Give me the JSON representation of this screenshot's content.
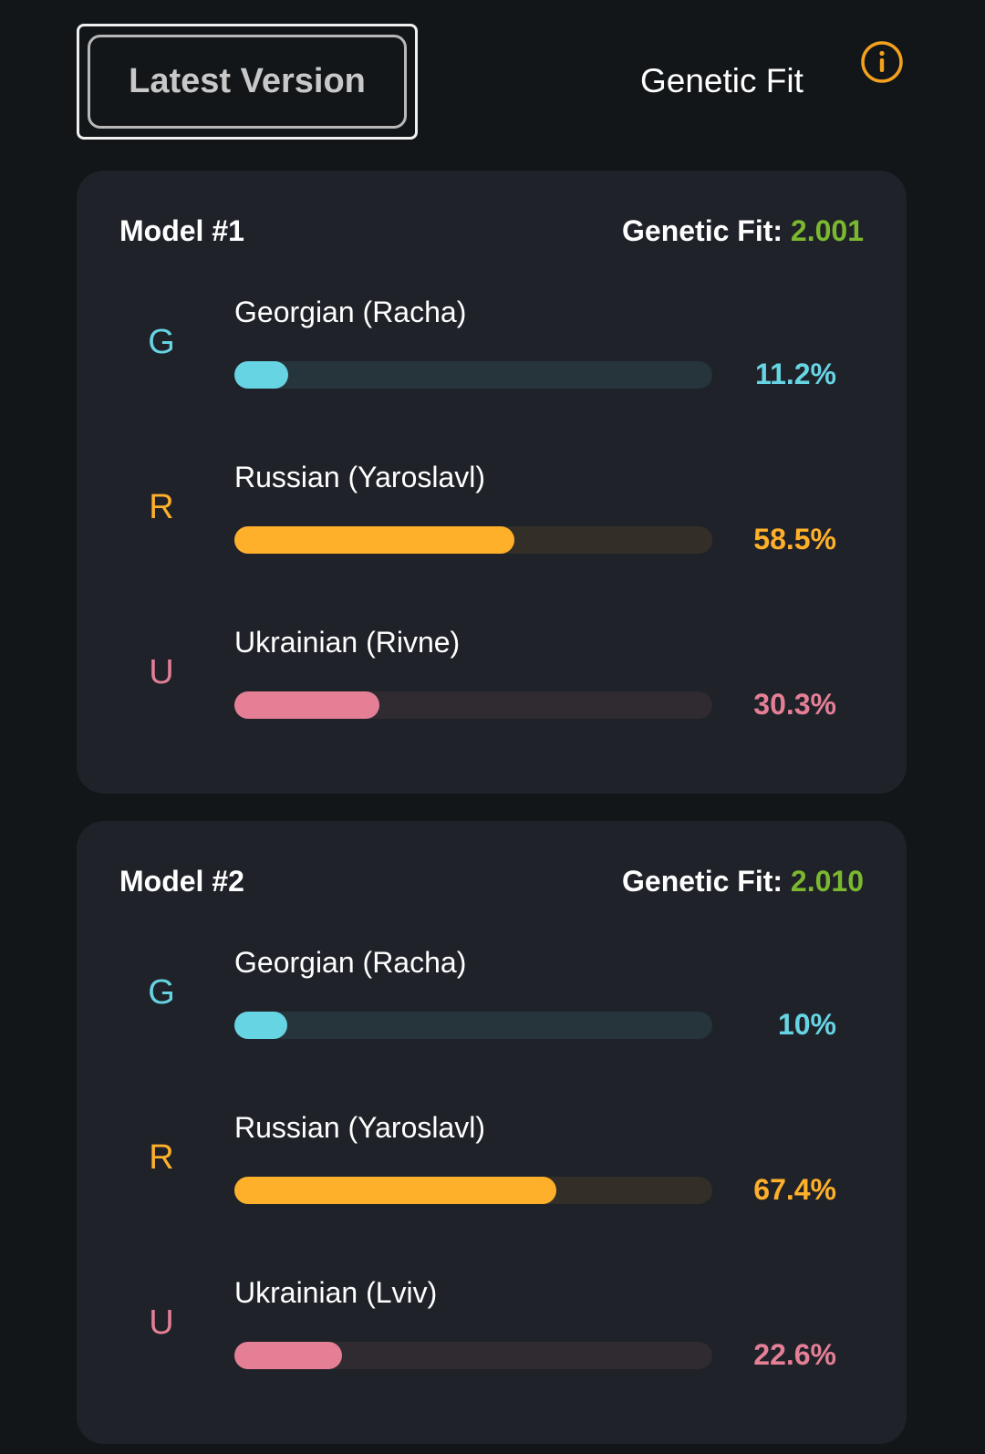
{
  "header": {
    "button_label": "Latest Version",
    "title": "Genetic Fit",
    "info_icon": "info-circle-icon",
    "info_color": "#f4a11e"
  },
  "colors": {
    "fit_value": "#7cb82f"
  },
  "models": [
    {
      "title": "Model #1",
      "fit_label": "Genetic Fit:",
      "fit_value": "2.001",
      "rows": [
        {
          "letter": "G",
          "label": "Georgian (Racha)",
          "percent_text": "11.2%",
          "percent": 11.2,
          "color": "#67d4e4",
          "track": "#26343b"
        },
        {
          "letter": "R",
          "label": "Russian (Yaroslavl)",
          "percent_text": "58.5%",
          "percent": 58.5,
          "color": "#ffb02a",
          "track": "#332f28"
        },
        {
          "letter": "U",
          "label": "Ukrainian (Rivne)",
          "percent_text": "30.3%",
          "percent": 30.3,
          "color": "#e47f96",
          "track": "#302a31"
        }
      ]
    },
    {
      "title": "Model #2",
      "fit_label": "Genetic Fit:",
      "fit_value": "2.010",
      "rows": [
        {
          "letter": "G",
          "label": "Georgian (Racha)",
          "percent_text": "10%",
          "percent": 10,
          "color": "#67d4e4",
          "track": "#26343b"
        },
        {
          "letter": "R",
          "label": "Russian (Yaroslavl)",
          "percent_text": "67.4%",
          "percent": 67.4,
          "color": "#ffb02a",
          "track": "#332f28"
        },
        {
          "letter": "U",
          "label": "Ukrainian (Lviv)",
          "percent_text": "22.6%",
          "percent": 22.6,
          "color": "#e47f96",
          "track": "#302a31"
        }
      ]
    }
  ]
}
